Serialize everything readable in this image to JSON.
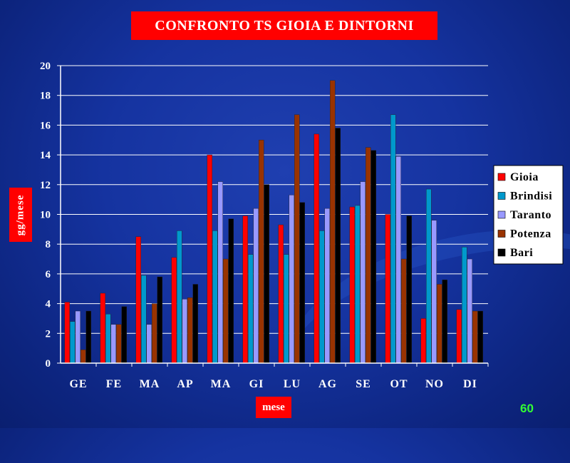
{
  "slide": {
    "title": "CONFRONTO  TS  GIOIA  E  DINTORNI",
    "page_number": "60"
  },
  "chart_data": {
    "type": "bar",
    "title": "CONFRONTO  TS  GIOIA  E  DINTORNI",
    "xlabel": "mese",
    "ylabel": "gg/mese",
    "ylim": [
      0,
      20
    ],
    "yticks": [
      0,
      2,
      4,
      6,
      8,
      10,
      12,
      14,
      16,
      18,
      20
    ],
    "grid": true,
    "legend_position": "right",
    "categories": [
      "GE",
      "FE",
      "MA",
      "AP",
      "MA",
      "GI",
      "LU",
      "AG",
      "SE",
      "OT",
      "NO",
      "DI"
    ],
    "series": [
      {
        "name": "Gioia",
        "color": "#ff0000",
        "values": [
          4.1,
          4.7,
          8.5,
          7.1,
          14.0,
          9.9,
          9.3,
          15.4,
          10.5,
          10.0,
          3.0,
          3.6
        ]
      },
      {
        "name": "Brindisi",
        "color": "#0099cc",
        "values": [
          2.8,
          3.3,
          5.9,
          8.9,
          8.9,
          7.3,
          7.3,
          8.9,
          10.6,
          16.7,
          11.7,
          7.8
        ]
      },
      {
        "name": "Taranto",
        "color": "#9999ff",
        "values": [
          3.5,
          2.6,
          2.6,
          4.3,
          12.2,
          10.4,
          11.3,
          10.4,
          12.2,
          13.9,
          9.6,
          7.0
        ]
      },
      {
        "name": "Potenza",
        "color": "#993300",
        "values": [
          0.9,
          2.6,
          4.0,
          4.4,
          7.0,
          15.0,
          16.7,
          19.0,
          14.5,
          7.0,
          5.3,
          3.5
        ]
      },
      {
        "name": "Bari",
        "color": "#000000",
        "values": [
          3.5,
          3.8,
          5.8,
          5.3,
          9.7,
          12.0,
          10.8,
          15.8,
          14.3,
          9.9,
          5.6,
          3.5
        ]
      }
    ]
  }
}
